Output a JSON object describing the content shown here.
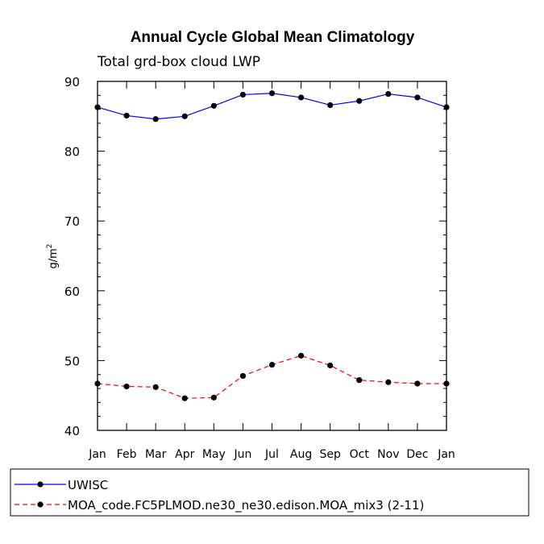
{
  "chart_data": {
    "type": "line",
    "title": "Annual Cycle Global Mean Climatology",
    "subtitle": "Total grd-box cloud LWP",
    "ylabel_base": "g/m",
    "ylabel_exp": "2",
    "xlabel": "",
    "categories": [
      "Jan",
      "Feb",
      "Mar",
      "Apr",
      "May",
      "Jun",
      "Jul",
      "Aug",
      "Sep",
      "Oct",
      "Nov",
      "Dec",
      "Jan"
    ],
    "ylim": [
      40,
      90
    ],
    "yticks": [
      40,
      50,
      60,
      70,
      80,
      90
    ],
    "series": [
      {
        "name": "UWISC",
        "color": "#0000ff",
        "dash": "solid",
        "values": [
          86.3,
          85.1,
          84.6,
          85.0,
          86.5,
          88.1,
          88.3,
          87.7,
          86.6,
          87.2,
          88.2,
          87.7,
          86.3
        ]
      },
      {
        "name": "MOA_code.FC5PLMOD.ne30_ne30.edison.MOA_mix3 (2-11)",
        "color": "#ff0000",
        "dash": "dashed",
        "values": [
          46.7,
          46.3,
          46.2,
          44.6,
          44.7,
          47.8,
          49.4,
          50.7,
          49.3,
          47.2,
          46.9,
          46.7,
          46.7
        ]
      }
    ],
    "legend": "bottom"
  }
}
